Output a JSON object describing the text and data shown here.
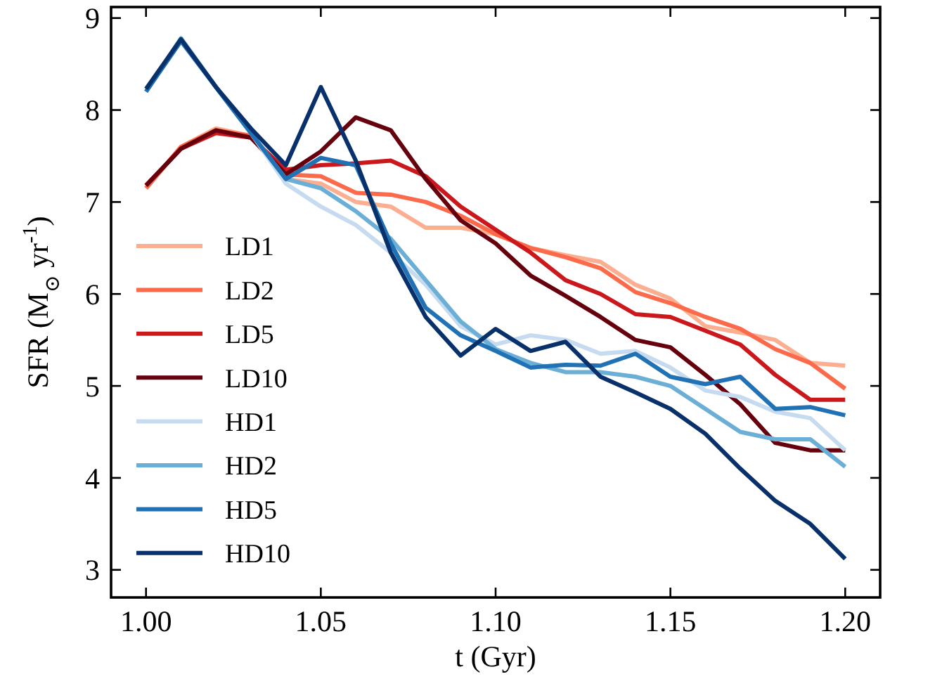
{
  "chart_data": {
    "type": "line",
    "xlabel": "t (Gyr)",
    "ylabel": "SFR (M$_{⊙}$ yr$^{-1}$)",
    "x": [
      1.0,
      1.01,
      1.02,
      1.03,
      1.04,
      1.05,
      1.06,
      1.07,
      1.08,
      1.09,
      1.1,
      1.11,
      1.12,
      1.13,
      1.14,
      1.15,
      1.16,
      1.17,
      1.18,
      1.19,
      1.2
    ],
    "xlim": [
      0.99,
      1.21
    ],
    "xticks": [
      {
        "value": 1.0,
        "label": "1.00"
      },
      1.05,
      {
        "value": 1.1,
        "label": "1.10"
      },
      1.15,
      {
        "value": 1.2,
        "label": "1.20"
      }
    ],
    "ylim": [
      2.7,
      9.12
    ],
    "yticks": [
      3,
      4,
      5,
      6,
      7,
      8,
      9
    ],
    "legend": "left",
    "grid": false,
    "marker": "none",
    "line_style": "solid",
    "series": [
      {
        "name": "LD1",
        "color": "#fcae91",
        "values": [
          7.15,
          7.6,
          7.8,
          7.72,
          7.25,
          7.2,
          7.0,
          6.95,
          6.72,
          6.72,
          6.65,
          6.5,
          6.42,
          6.35,
          6.1,
          5.95,
          5.65,
          5.58,
          5.5,
          5.25,
          5.22
        ]
      },
      {
        "name": "LD2",
        "color": "#fb6a4a",
        "values": [
          7.15,
          7.6,
          7.78,
          7.72,
          7.3,
          7.28,
          7.1,
          7.08,
          7.0,
          6.85,
          6.65,
          6.5,
          6.4,
          6.28,
          6.02,
          5.9,
          5.75,
          5.62,
          5.4,
          5.25,
          4.97
        ]
      },
      {
        "name": "LD5",
        "color": "#cb181d",
        "values": [
          7.18,
          7.58,
          7.75,
          7.7,
          7.35,
          7.4,
          7.42,
          7.45,
          7.28,
          6.95,
          6.7,
          6.45,
          6.15,
          6.0,
          5.78,
          5.75,
          5.6,
          5.45,
          5.12,
          4.85,
          4.85
        ]
      },
      {
        "name": "LD10",
        "color": "#67000d",
        "values": [
          7.18,
          7.58,
          7.78,
          7.7,
          7.3,
          7.55,
          7.92,
          7.78,
          7.25,
          6.8,
          6.55,
          6.2,
          5.98,
          5.75,
          5.5,
          5.42,
          5.12,
          4.8,
          4.38,
          4.3,
          4.3
        ]
      },
      {
        "name": "HD1",
        "color": "#c6dbef",
        "values": [
          8.2,
          8.78,
          8.25,
          7.75,
          7.2,
          6.95,
          6.75,
          6.45,
          6.1,
          5.65,
          5.45,
          5.55,
          5.5,
          5.35,
          5.38,
          5.2,
          4.95,
          4.88,
          4.72,
          4.65,
          4.3
        ]
      },
      {
        "name": "HD2",
        "color": "#6baed6",
        "values": [
          8.2,
          8.78,
          8.25,
          7.75,
          7.25,
          7.15,
          6.9,
          6.6,
          6.15,
          5.7,
          5.4,
          5.25,
          5.15,
          5.15,
          5.1,
          5.0,
          4.75,
          4.5,
          4.42,
          4.42,
          4.12
        ]
      },
      {
        "name": "HD5",
        "color": "#2171b5",
        "values": [
          8.2,
          8.75,
          8.25,
          7.75,
          7.25,
          7.48,
          7.4,
          6.55,
          5.85,
          5.55,
          5.38,
          5.2,
          5.23,
          5.22,
          5.35,
          5.1,
          5.02,
          5.1,
          4.75,
          4.77,
          4.68
        ]
      },
      {
        "name": "HD10",
        "color": "#08306b",
        "values": [
          8.23,
          8.77,
          8.25,
          7.8,
          7.4,
          8.25,
          7.45,
          6.45,
          5.75,
          5.33,
          5.62,
          5.38,
          5.48,
          5.1,
          4.93,
          4.75,
          4.48,
          4.1,
          3.75,
          3.5,
          3.12
        ]
      }
    ]
  }
}
